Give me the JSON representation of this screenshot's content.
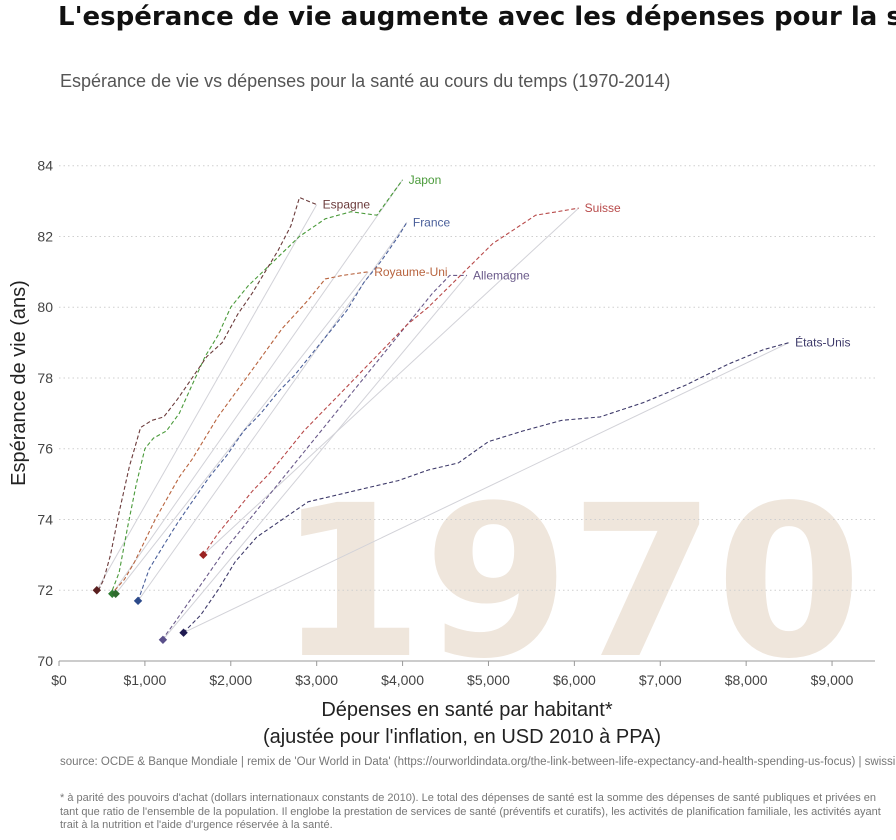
{
  "title": "L'espérance de vie augmente avec les dépenses pour la santé, avec plus ou moins de succès",
  "subtitle": "Espérance de vie vs dépenses pour la santé au cours du temps (1970-2014)",
  "source": "source: OCDE & Banque Mondiale | remix de 'Our World in Data' (https://ourworldindata.org/the-link-between-life-expectancy-and-health-spending-us-focus) | swissinfo.ch",
  "footnote": "* à parité des pouvoirs d'achat (dollars internationaux constants de 2010). Le total des dépenses de santé est la somme des dépenses de santé publiques et privées en tant que ratio de l'ensemble de la population. Il englobe la prestation de services de santé (préventifs et curatifs), les activités de planification familiale, les activités ayant trait à la nutrition et l'aide d'urgence réservée à la santé.",
  "chart_data": {
    "type": "line",
    "year_label": "1970",
    "xlabel": "Dépenses en santé par habitant*",
    "xlabel_line2": "(ajustée pour l'inflation, en USD 2010 à PPA)",
    "ylabel": "Espérance de vie (ans)",
    "xlim": [
      0,
      9500
    ],
    "ylim": [
      70,
      84.5
    ],
    "x_ticks": [
      0,
      1000,
      2000,
      3000,
      4000,
      5000,
      6000,
      7000,
      8000,
      9000
    ],
    "x_tick_labels": [
      "$0",
      "$1,000",
      "$2,000",
      "$3,000",
      "$4,000",
      "$5,000",
      "$6,000",
      "$7,000",
      "$8,000",
      "$9,000"
    ],
    "y_ticks": [
      70,
      72,
      74,
      76,
      78,
      80,
      82,
      84
    ],
    "y_tick_labels": [
      "70",
      "72",
      "74",
      "76",
      "78",
      "80",
      "82",
      "84"
    ],
    "grid": "horizontal dotted",
    "legend": "none (direct labels at line ends)",
    "series": [
      {
        "name": "Japon",
        "color": "#4a9a3a",
        "x": [
          620,
          700,
          800,
          900,
          1000,
          1100,
          1250,
          1400,
          1550,
          1700,
          1850,
          2000,
          2200,
          2500,
          2800,
          3100,
          3400,
          3700,
          4000
        ],
        "y": [
          72.0,
          72.5,
          73.8,
          75.0,
          76.0,
          76.3,
          76.5,
          77.0,
          77.8,
          78.6,
          79.2,
          80.0,
          80.6,
          81.3,
          82.0,
          82.5,
          82.7,
          82.6,
          83.6
        ]
      },
      {
        "name": "Espagne",
        "color": "#6b3b3b",
        "x": [
          460,
          520,
          600,
          700,
          820,
          950,
          1080,
          1220,
          1380,
          1550,
          1720,
          1900,
          2080,
          2250,
          2400,
          2550,
          2700,
          2800,
          2900,
          3000
        ],
        "y": [
          72.0,
          72.3,
          73.0,
          74.2,
          75.5,
          76.6,
          76.8,
          76.9,
          77.4,
          78.0,
          78.6,
          79.0,
          79.8,
          80.4,
          81.0,
          81.6,
          82.3,
          83.1,
          83.0,
          82.9
        ]
      },
      {
        "name": "France",
        "color": "#4a5f9a",
        "x": [
          920,
          1050,
          1200,
          1380,
          1550,
          1750,
          1950,
          2150,
          2350,
          2550,
          2750,
          2950,
          3150,
          3350,
          3550,
          3750,
          3950,
          4050
        ],
        "y": [
          71.7,
          72.6,
          73.2,
          73.9,
          74.5,
          75.2,
          75.8,
          76.5,
          77.0,
          77.6,
          78.1,
          78.7,
          79.3,
          79.9,
          80.7,
          81.3,
          82.0,
          82.4
        ]
      },
      {
        "name": "Royaume-Uni",
        "color": "#b8643f",
        "x": [
          650,
          760,
          880,
          1000,
          1120,
          1260,
          1400,
          1550,
          1700,
          1850,
          2000,
          2150,
          2300,
          2450,
          2600,
          2750,
          2900,
          3000,
          3100,
          3300,
          3600
        ],
        "y": [
          72.0,
          72.3,
          72.8,
          73.4,
          74.0,
          74.6,
          75.2,
          75.7,
          76.3,
          76.9,
          77.4,
          77.9,
          78.4,
          78.9,
          79.4,
          79.8,
          80.2,
          80.5,
          80.8,
          80.9,
          81.0
        ]
      },
      {
        "name": "Allemagne",
        "color": "#6a5a8a",
        "x": [
          1200,
          1350,
          1550,
          1750,
          1950,
          2150,
          2350,
          2550,
          2750,
          2950,
          3150,
          3350,
          3550,
          3750,
          3950,
          4150,
          4350,
          4550,
          4750
        ],
        "y": [
          70.6,
          71.1,
          71.8,
          72.5,
          73.2,
          73.8,
          74.4,
          75.0,
          75.6,
          76.2,
          76.8,
          77.4,
          78.0,
          78.6,
          79.2,
          79.8,
          80.4,
          80.9,
          80.9
        ]
      },
      {
        "name": "Suisse",
        "color": "#b84a4a",
        "x": [
          1680,
          1850,
          2050,
          2250,
          2450,
          2650,
          2850,
          3050,
          3250,
          3450,
          3650,
          3850,
          4050,
          4300,
          4550,
          4800,
          5050,
          5300,
          5550,
          5800,
          6050
        ],
        "y": [
          73.0,
          73.6,
          74.2,
          74.8,
          75.3,
          75.9,
          76.5,
          77.0,
          77.5,
          78.0,
          78.5,
          79.0,
          79.5,
          80.0,
          80.6,
          81.2,
          81.8,
          82.2,
          82.6,
          82.7,
          82.8
        ]
      },
      {
        "name": "États-Unis",
        "color": "#3e3a6a",
        "x": [
          1450,
          1650,
          1850,
          2050,
          2300,
          2600,
          2900,
          3250,
          3600,
          3950,
          4300,
          4650,
          5000,
          5400,
          5850,
          6300,
          6800,
          7300,
          7800,
          8200,
          8500
        ],
        "y": [
          70.8,
          71.3,
          72.0,
          72.8,
          73.5,
          74.0,
          74.5,
          74.7,
          74.9,
          75.1,
          75.4,
          75.6,
          76.2,
          76.5,
          76.8,
          76.9,
          77.3,
          77.8,
          78.4,
          78.8,
          79.0
        ]
      }
    ],
    "markers_1970": [
      {
        "name": "Espagne",
        "x": 440,
        "y": 72.0
      },
      {
        "name": "Japon",
        "x": 620,
        "y": 71.9
      },
      {
        "name": "Royaume-Uni",
        "x": 660,
        "y": 71.9
      },
      {
        "name": "France",
        "x": 920,
        "y": 71.7
      },
      {
        "name": "Allemagne",
        "x": 1210,
        "y": 70.6
      },
      {
        "name": "États-Unis",
        "x": 1450,
        "y": 70.8
      },
      {
        "name": "Suisse",
        "x": 1680,
        "y": 73.0
      }
    ],
    "marker_colors": {
      "Espagne": "#5a1f1f",
      "Japon": "#2e7d32",
      "Royaume-Uni": "#2e6b2e",
      "France": "#2c4a8a",
      "Allemagne": "#5a4f8a",
      "États-Unis": "#1f1a50",
      "Suisse": "#9a2222"
    }
  }
}
